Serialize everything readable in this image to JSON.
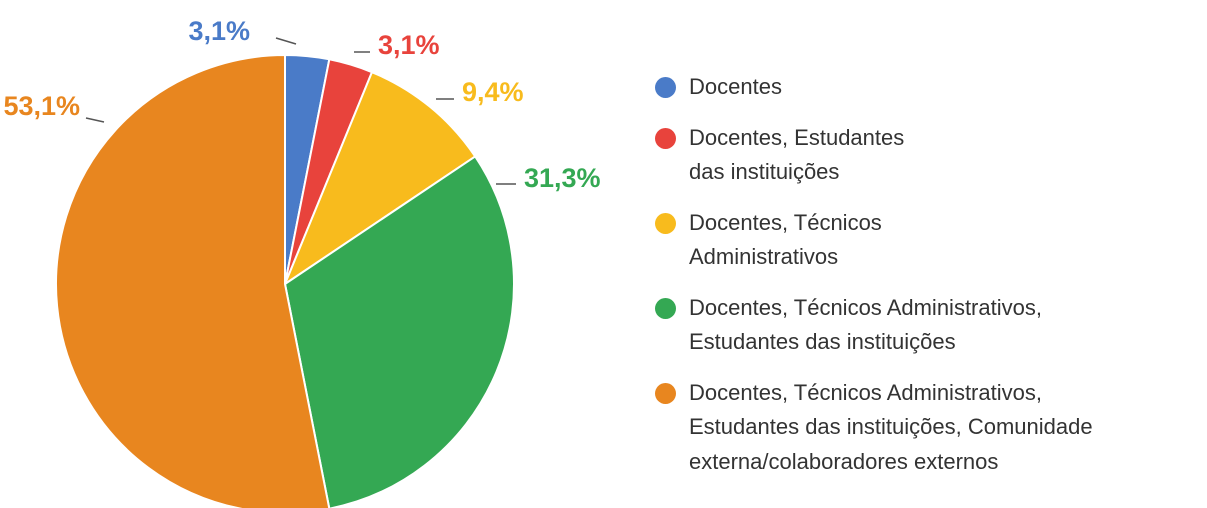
{
  "chart_data": {
    "type": "pie",
    "categories": [
      "Docentes",
      "Docentes, Estudantes\ndas instituições",
      "Docentes, Técnicos\nAdministrativos",
      "Docentes, Técnicos Administrativos,\nEstudantes das instituições",
      "Docentes, Técnicos Administrativos,\nEstudantes das instituições, Comunidade\nexterna/colaboradores externos"
    ],
    "values": [
      3.1,
      3.1,
      9.4,
      31.3,
      53.1
    ],
    "value_labels": [
      "3,1%",
      "3,1%",
      "9,4%",
      "31,3%",
      "53,1%"
    ],
    "colors": [
      "#4a7bc8",
      "#e8433c",
      "#f8bb1d",
      "#34a853",
      "#e8861f"
    ],
    "legend": "right"
  }
}
